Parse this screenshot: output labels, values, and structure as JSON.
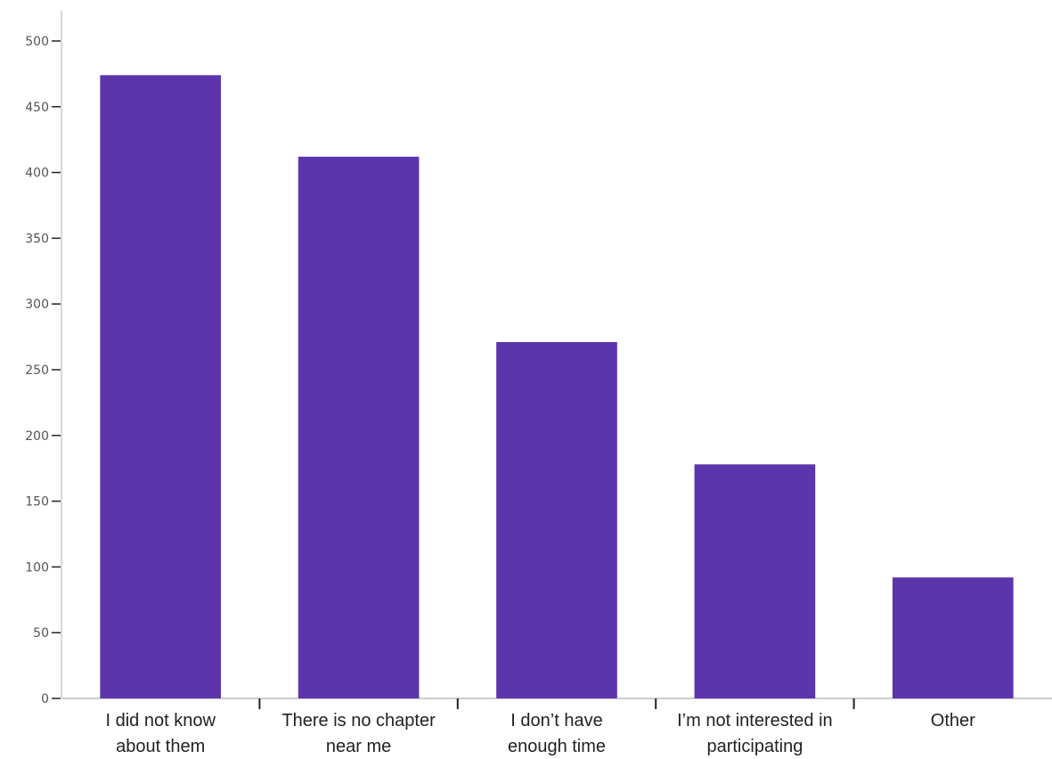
{
  "chart_data": {
    "type": "bar",
    "categories": [
      [
        "I did not know",
        "about them"
      ],
      [
        "There is no chapter",
        "near me"
      ],
      [
        "I don’t have",
        "enough time"
      ],
      [
        "I’m not interested in",
        "participating"
      ],
      [
        "Other"
      ]
    ],
    "values": [
      474,
      412,
      271,
      178,
      92
    ],
    "ylim": [
      0,
      500
    ],
    "yticks": [
      0,
      50,
      100,
      150,
      200,
      250,
      300,
      350,
      400,
      450,
      500
    ],
    "grid": false,
    "colors": {
      "bar": "#5c35ad",
      "axis": "#cccccc",
      "tick": "#222222"
    }
  }
}
